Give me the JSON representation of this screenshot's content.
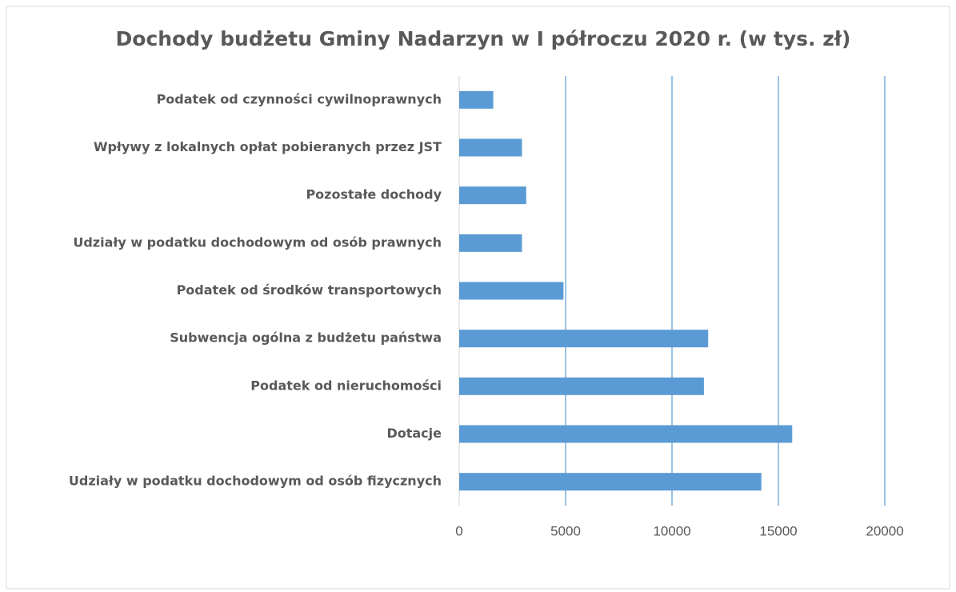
{
  "chart_data": {
    "type": "barh",
    "title": "Dochody budżetu Gminy Nadarzyn w I półroczu 2020 r. (w tys. zł)",
    "categories": [
      "Podatek od czynności cywilnoprawnych",
      "Wpływy z lokalnych opłat pobieranych przez JST",
      "Pozostałe dochody",
      "Udziały w podatku dochodowym od osób prawnych",
      "Podatek od środków transportowych",
      "Subwencja ogólna z budżetu państwa",
      "Podatek od nieruchomości",
      "Dotacje",
      "Udziały w podatku dochodowym od osób fizycznych"
    ],
    "values": [
      1600,
      2950,
      3150,
      2950,
      4900,
      11700,
      11500,
      15650,
      14200
    ],
    "color": "#5b9bd5",
    "xlim": [
      0,
      20000
    ],
    "xticks": [
      0,
      5000,
      10000,
      15000,
      20000
    ],
    "grid": true
  }
}
